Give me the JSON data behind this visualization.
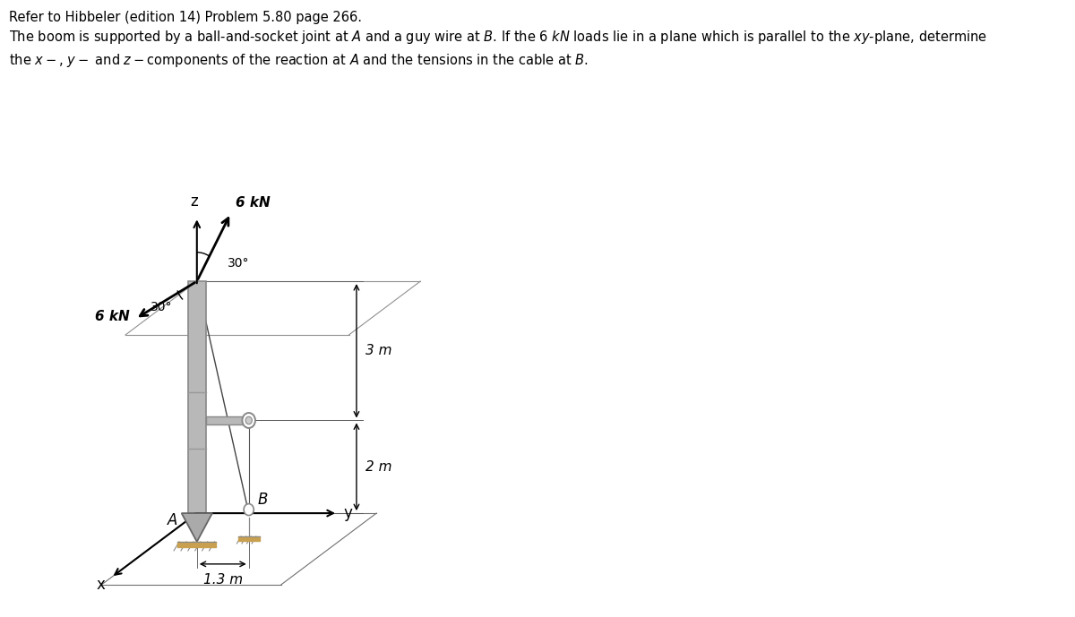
{
  "title_line1": "Refer to Hibbeler (edition 14) Problem 5.80 page 266.",
  "title_line2": "The boom is supported by a ball-and-socket joint at $A$ and a guy wire at $B$. If the 6 $kN$ loads lie in a plane which is parallel to the $xy$-plane, determine",
  "title_line3": "the $x-$, $y-$ and $z-$components of the reaction at $A$ and the tensions in the cable at $B$.",
  "bg_color": "#ffffff",
  "load_kN": "6 kN",
  "angle_deg": "30°",
  "dim_3m": "3 m",
  "dim_2m": "2 m",
  "dim_1p3m": "1.3 m",
  "label_A": "A",
  "label_B": "B",
  "label_x": "x",
  "label_y": "y",
  "label_z": "z",
  "boom_color": "#b8b8b8",
  "boom_edge": "#888888",
  "line_color": "#555555",
  "ground_color": "#c8a050"
}
